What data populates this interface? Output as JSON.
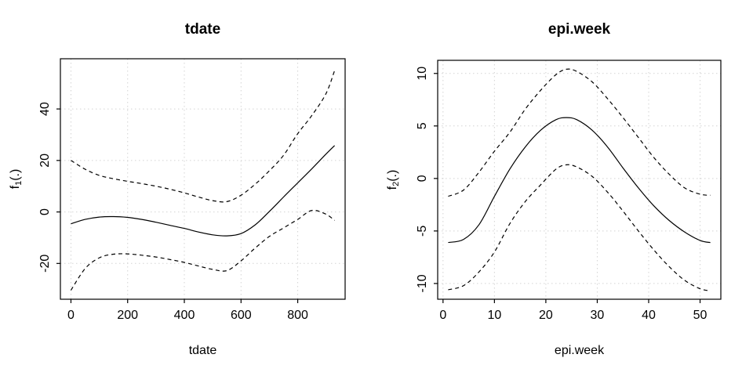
{
  "style": {
    "background": "#ffffff",
    "line_color": "#000000",
    "grid_color": "#d3d3d3",
    "box_color": "#000000",
    "text_color": "#000000"
  },
  "chart_data": [
    {
      "type": "line",
      "title": "tdate",
      "xlabel": "tdate",
      "ylabel": {
        "base": "f",
        "sub": "1",
        "rest": "(.)"
      },
      "xlim": [
        -37.2,
        967.2
      ],
      "ylim": [
        -33.9,
        59.5
      ],
      "xticks": [
        0,
        200,
        400,
        600,
        800
      ],
      "yticks": [
        -20,
        0,
        20,
        40
      ],
      "grid": "dotted",
      "legend": "none",
      "x": [
        0,
        50,
        100,
        150,
        200,
        250,
        300,
        350,
        400,
        450,
        500,
        550,
        600,
        650,
        700,
        750,
        800,
        850,
        900,
        930
      ],
      "series": [
        {
          "name": "fit",
          "style": "solid",
          "values": [
            -4.6,
            -2.9,
            -2.0,
            -1.8,
            -2.1,
            -2.9,
            -4.0,
            -5.2,
            -6.4,
            -7.8,
            -8.9,
            -9.3,
            -8.4,
            -5.0,
            0.2,
            5.8,
            11.3,
            16.8,
            22.5,
            25.8
          ]
        },
        {
          "name": "upper-95ci",
          "style": "dashed",
          "values": [
            20.0,
            16.6,
            14.2,
            12.9,
            11.9,
            11.0,
            10.0,
            8.8,
            7.4,
            5.8,
            4.4,
            4.0,
            6.5,
            10.8,
            16.0,
            22.0,
            30.4,
            37.5,
            46.0,
            54.9
          ]
        },
        {
          "name": "lower-95ci",
          "style": "dashed",
          "values": [
            -30.4,
            -22.0,
            -17.8,
            -16.4,
            -16.3,
            -16.8,
            -17.5,
            -18.5,
            -19.6,
            -21.0,
            -22.3,
            -22.8,
            -19.0,
            -14.0,
            -9.5,
            -6.2,
            -2.9,
            0.6,
            -0.9,
            -3.3
          ]
        }
      ]
    },
    {
      "type": "line",
      "title": "epi.week",
      "xlabel": "epi.week",
      "ylabel": {
        "base": "f",
        "sub": "2",
        "rest": "(.)"
      },
      "xlim": [
        -1.04,
        54.04
      ],
      "ylim": [
        -11.5,
        11.25
      ],
      "xticks": [
        0,
        10,
        20,
        30,
        40,
        50
      ],
      "yticks": [
        -10,
        -5,
        0,
        5,
        10
      ],
      "grid": "dotted",
      "legend": "none",
      "x": [
        1,
        4,
        7,
        10,
        13,
        16,
        19,
        22,
        24,
        26,
        29,
        32,
        35,
        38,
        41,
        44,
        47,
        50,
        52
      ],
      "series": [
        {
          "name": "fit",
          "style": "solid",
          "values": [
            -6.1,
            -5.8,
            -4.4,
            -1.7,
            0.9,
            3.0,
            4.6,
            5.6,
            5.8,
            5.6,
            4.6,
            3.0,
            1.0,
            -0.9,
            -2.6,
            -4.0,
            -5.1,
            -5.9,
            -6.1
          ]
        },
        {
          "name": "upper-95ci",
          "style": "dashed",
          "values": [
            -1.7,
            -1.1,
            0.6,
            2.6,
            4.4,
            6.6,
            8.4,
            9.9,
            10.4,
            10.2,
            9.2,
            7.6,
            5.8,
            3.9,
            2.0,
            0.4,
            -0.9,
            -1.5,
            -1.6
          ]
        },
        {
          "name": "lower-95ci",
          "style": "dashed",
          "values": [
            -10.6,
            -10.2,
            -8.9,
            -7.0,
            -4.3,
            -2.2,
            -0.6,
            0.9,
            1.3,
            1.1,
            0.2,
            -1.3,
            -3.1,
            -5.0,
            -6.8,
            -8.4,
            -9.7,
            -10.5,
            -10.7
          ]
        }
      ]
    }
  ]
}
